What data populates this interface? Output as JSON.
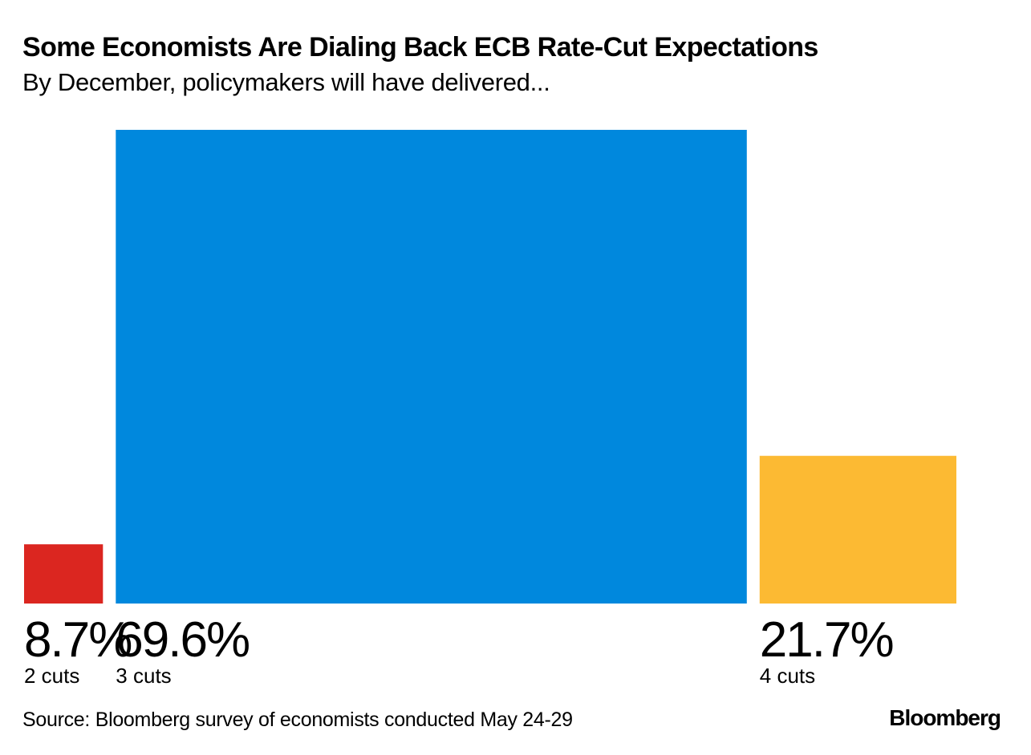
{
  "header": {
    "title": "Some Economists Are Dialing Back ECB Rate-Cut Expectations",
    "subtitle": "By December, policymakers will have delivered..."
  },
  "chart_data": {
    "type": "bar",
    "title": "Some Economists Are Dialing Back ECB Rate-Cut Expectations",
    "subtitle": "By December, policymakers will have delivered...",
    "categories": [
      "2 cuts",
      "3 cuts",
      "4 cuts"
    ],
    "values": [
      8.7,
      69.6,
      21.7
    ],
    "value_labels": [
      "8.7%",
      "69.6%",
      "21.7%"
    ],
    "colors": [
      "#db2620",
      "#0088dd",
      "#fcba33"
    ],
    "unit": "%",
    "note": "bar widths proportional to share"
  },
  "footer": {
    "source": "Source: Bloomberg survey of economists conducted May 24-29",
    "logo": "Bloomberg"
  }
}
